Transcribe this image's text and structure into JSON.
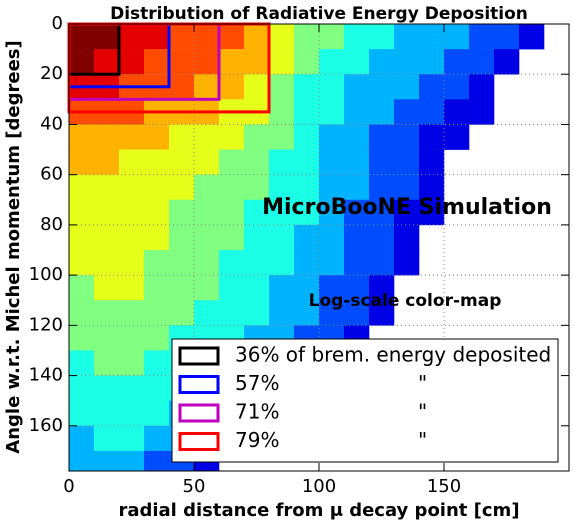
{
  "chart_data": {
    "type": "heatmap",
    "title": "Distribution of Radiative Energy Deposition",
    "x_label": "radial distance from μ decay point [cm]",
    "y_label": "Angle w.r.t. Michel momentum [degrees]",
    "annotations": [
      "MicroBooNE Simulation",
      "Log-scale color-map"
    ],
    "xlim": [
      0,
      200
    ],
    "xticks": [
      0,
      50,
      100,
      150
    ],
    "ylim": [
      0,
      178
    ],
    "yticks": [
      0,
      20,
      40,
      60,
      80,
      100,
      120,
      140,
      160
    ],
    "y_inverted": true,
    "grid": true,
    "colormap": "jet",
    "zlim": [
      0,
      10
    ],
    "xbins": [
      0,
      10,
      20,
      30,
      40,
      50,
      60,
      70,
      80,
      90,
      100,
      110,
      120,
      130,
      140,
      150,
      160,
      170,
      180,
      190,
      200
    ],
    "ybins": [
      0,
      10,
      20,
      30,
      40,
      50,
      60,
      70,
      80,
      90,
      100,
      110,
      120,
      130,
      140,
      150,
      160,
      170,
      180
    ],
    "z": [
      [
        10,
        10,
        9,
        9,
        8,
        8,
        8,
        7,
        6,
        5,
        5,
        4,
        4,
        3,
        3,
        3,
        2,
        2,
        1,
        null
      ],
      [
        10,
        9,
        9,
        8,
        8,
        8,
        7,
        7,
        6,
        5,
        4,
        4,
        3,
        3,
        3,
        2,
        2,
        1,
        null,
        null
      ],
      [
        9,
        9,
        8,
        8,
        8,
        7,
        7,
        6,
        5,
        4,
        4,
        3,
        3,
        3,
        2,
        2,
        1,
        null,
        null,
        null
      ],
      [
        8,
        8,
        8,
        7,
        7,
        7,
        6,
        6,
        5,
        4,
        4,
        3,
        3,
        2,
        2,
        1,
        1,
        null,
        null,
        null
      ],
      [
        7,
        7,
        7,
        7,
        6,
        6,
        6,
        5,
        5,
        4,
        3,
        3,
        2,
        2,
        1,
        1,
        null,
        null,
        null,
        null
      ],
      [
        7,
        7,
        6,
        6,
        6,
        6,
        5,
        5,
        4,
        4,
        3,
        3,
        2,
        2,
        1,
        null,
        null,
        null,
        null,
        null
      ],
      [
        6,
        6,
        6,
        6,
        6,
        5,
        5,
        5,
        4,
        4,
        3,
        3,
        2,
        2,
        1,
        null,
        null,
        null,
        null,
        null
      ],
      [
        6,
        6,
        6,
        6,
        5,
        5,
        5,
        4,
        4,
        4,
        3,
        2,
        2,
        1,
        1,
        null,
        null,
        null,
        null,
        null
      ],
      [
        6,
        6,
        6,
        6,
        5,
        5,
        5,
        4,
        4,
        3,
        3,
        2,
        2,
        1,
        null,
        null,
        null,
        null,
        null,
        null
      ],
      [
        6,
        6,
        6,
        5,
        5,
        5,
        4,
        4,
        4,
        3,
        3,
        2,
        2,
        1,
        null,
        null,
        null,
        null,
        null,
        null
      ],
      [
        5,
        6,
        6,
        5,
        5,
        5,
        4,
        4,
        3,
        3,
        2,
        2,
        1,
        null,
        null,
        null,
        null,
        null,
        null,
        null
      ],
      [
        5,
        5,
        5,
        5,
        5,
        4,
        4,
        4,
        3,
        3,
        2,
        2,
        1,
        null,
        null,
        null,
        null,
        null,
        null,
        null
      ],
      [
        5,
        5,
        5,
        5,
        4,
        4,
        4,
        3,
        3,
        2,
        2,
        1,
        null,
        null,
        null,
        null,
        null,
        null,
        null,
        null
      ],
      [
        4,
        5,
        5,
        4,
        4,
        4,
        3,
        3,
        2,
        2,
        1,
        null,
        null,
        null,
        null,
        null,
        null,
        null,
        null,
        null
      ],
      [
        4,
        4,
        4,
        4,
        4,
        3,
        3,
        2,
        2,
        1,
        null,
        null,
        null,
        null,
        null,
        null,
        null,
        null,
        null,
        null
      ],
      [
        4,
        4,
        4,
        4,
        3,
        3,
        2,
        2,
        1,
        null,
        null,
        null,
        null,
        null,
        null,
        null,
        null,
        null,
        null,
        null
      ],
      [
        3,
        4,
        4,
        3,
        3,
        2,
        2,
        1,
        null,
        null,
        null,
        null,
        null,
        null,
        null,
        null,
        null,
        null,
        null,
        null
      ],
      [
        3,
        3,
        3,
        2,
        2,
        1,
        null,
        null,
        null,
        null,
        null,
        null,
        null,
        null,
        null,
        null,
        null,
        null,
        null,
        null
      ]
    ],
    "ditto_mark": "\"",
    "boxes": [
      {
        "name": "36% of brem. energy deposited",
        "color": "#000000",
        "xrange": [
          0,
          20
        ],
        "yrange": [
          0,
          20
        ]
      },
      {
        "name": "57%",
        "color": "#0000ff",
        "xrange": [
          0,
          40
        ],
        "yrange": [
          0,
          25
        ]
      },
      {
        "name": "71%",
        "color": "#bf00bf",
        "xrange": [
          0,
          60
        ],
        "yrange": [
          0,
          30
        ]
      },
      {
        "name": "79%",
        "color": "#ff0000",
        "xrange": [
          0,
          80
        ],
        "yrange": [
          0,
          35
        ]
      }
    ]
  }
}
